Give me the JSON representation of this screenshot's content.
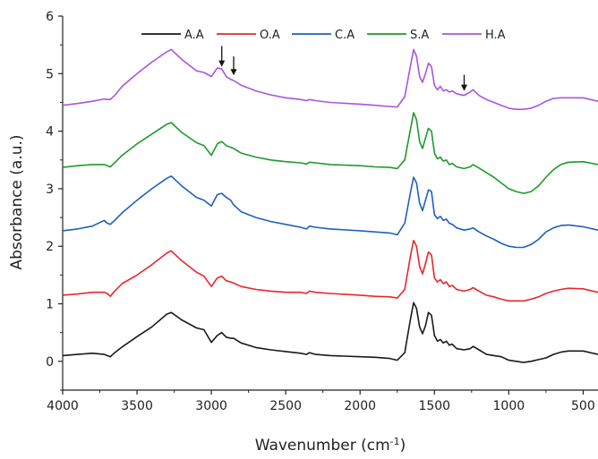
{
  "chart_data": {
    "type": "line",
    "title": "",
    "xlabel": "Wavenumber (cm",
    "xlabel_sup": "-1",
    "xlabel_tail": ")",
    "ylabel": "Absorbance (a.u.)",
    "xlim": [
      4000,
      400
    ],
    "ylim": [
      -0.5,
      6
    ],
    "x_reversed": true,
    "grid": false,
    "legend": "top-center",
    "x_ticks": [
      4000,
      3500,
      3000,
      2500,
      2000,
      1500,
      1000,
      500
    ],
    "y_ticks": [
      0,
      1,
      2,
      3,
      4,
      5,
      6
    ],
    "x_tick_labels": [
      "4000",
      "3500",
      "3000",
      "2500",
      "2000",
      "1500",
      "1000",
      "500"
    ],
    "y_tick_labels": [
      "0",
      "1",
      "2",
      "3",
      "4",
      "5",
      "6"
    ],
    "x": [
      4000,
      3900,
      3800,
      3720,
      3700,
      3680,
      3650,
      3600,
      3500,
      3400,
      3300,
      3270,
      3200,
      3100,
      3050,
      3000,
      2960,
      2930,
      2900,
      2870,
      2850,
      2800,
      2700,
      2600,
      2500,
      2400,
      2360,
      2340,
      2300,
      2200,
      2000,
      1900,
      1800,
      1750,
      1700,
      1660,
      1640,
      1620,
      1600,
      1580,
      1560,
      1540,
      1520,
      1500,
      1480,
      1460,
      1440,
      1420,
      1400,
      1380,
      1350,
      1300,
      1260,
      1240,
      1200,
      1150,
      1100,
      1050,
      1000,
      950,
      900,
      850,
      800,
      750,
      700,
      650,
      600,
      500,
      400
    ],
    "series": [
      {
        "name": "A.A",
        "color": "#1a1a1a",
        "values": [
          0.1,
          0.12,
          0.14,
          0.12,
          0.1,
          0.08,
          0.15,
          0.25,
          0.43,
          0.6,
          0.82,
          0.85,
          0.72,
          0.58,
          0.55,
          0.33,
          0.45,
          0.5,
          0.42,
          0.4,
          0.4,
          0.32,
          0.24,
          0.2,
          0.17,
          0.14,
          0.12,
          0.15,
          0.12,
          0.1,
          0.08,
          0.07,
          0.05,
          0.02,
          0.15,
          0.75,
          1.02,
          0.92,
          0.6,
          0.48,
          0.62,
          0.85,
          0.8,
          0.45,
          0.35,
          0.38,
          0.32,
          0.35,
          0.28,
          0.3,
          0.22,
          0.2,
          0.22,
          0.26,
          0.2,
          0.12,
          0.1,
          0.08,
          0.02,
          0.0,
          -0.02,
          0.0,
          0.03,
          0.06,
          0.12,
          0.16,
          0.18,
          0.18,
          0.12
        ]
      },
      {
        "name": "O.A",
        "color": "#e8262a",
        "values": [
          1.15,
          1.17,
          1.2,
          1.2,
          1.18,
          1.13,
          1.22,
          1.35,
          1.5,
          1.68,
          1.88,
          1.92,
          1.75,
          1.55,
          1.48,
          1.3,
          1.45,
          1.48,
          1.4,
          1.38,
          1.36,
          1.3,
          1.25,
          1.22,
          1.2,
          1.2,
          1.18,
          1.22,
          1.2,
          1.18,
          1.15,
          1.13,
          1.12,
          1.1,
          1.25,
          1.85,
          2.1,
          2.0,
          1.65,
          1.52,
          1.7,
          1.9,
          1.85,
          1.45,
          1.38,
          1.42,
          1.35,
          1.38,
          1.3,
          1.32,
          1.25,
          1.22,
          1.25,
          1.28,
          1.22,
          1.15,
          1.12,
          1.08,
          1.05,
          1.05,
          1.05,
          1.08,
          1.12,
          1.18,
          1.22,
          1.25,
          1.27,
          1.26,
          1.2
        ]
      },
      {
        "name": "C.A",
        "color": "#1f5fbf",
        "values": [
          2.27,
          2.3,
          2.35,
          2.45,
          2.4,
          2.38,
          2.45,
          2.58,
          2.8,
          3.0,
          3.18,
          3.22,
          3.05,
          2.85,
          2.8,
          2.7,
          2.9,
          2.92,
          2.85,
          2.8,
          2.72,
          2.6,
          2.5,
          2.43,
          2.38,
          2.33,
          2.3,
          2.35,
          2.33,
          2.3,
          2.27,
          2.25,
          2.23,
          2.2,
          2.4,
          2.95,
          3.2,
          3.1,
          2.75,
          2.62,
          2.8,
          2.98,
          2.95,
          2.55,
          2.48,
          2.52,
          2.45,
          2.47,
          2.4,
          2.38,
          2.32,
          2.28,
          2.3,
          2.32,
          2.25,
          2.18,
          2.12,
          2.05,
          2.0,
          1.98,
          1.98,
          2.03,
          2.12,
          2.25,
          2.32,
          2.36,
          2.37,
          2.34,
          2.28
        ]
      },
      {
        "name": "S.A",
        "color": "#1e9a2a",
        "values": [
          3.37,
          3.4,
          3.42,
          3.42,
          3.4,
          3.38,
          3.45,
          3.58,
          3.78,
          3.95,
          4.12,
          4.15,
          3.98,
          3.8,
          3.75,
          3.58,
          3.78,
          3.82,
          3.75,
          3.72,
          3.7,
          3.62,
          3.55,
          3.5,
          3.47,
          3.45,
          3.43,
          3.46,
          3.45,
          3.42,
          3.4,
          3.38,
          3.37,
          3.35,
          3.5,
          4.05,
          4.32,
          4.2,
          3.82,
          3.7,
          3.88,
          4.05,
          4.0,
          3.62,
          3.52,
          3.55,
          3.48,
          3.5,
          3.42,
          3.44,
          3.38,
          3.35,
          3.38,
          3.42,
          3.36,
          3.28,
          3.2,
          3.1,
          3.0,
          2.95,
          2.92,
          2.95,
          3.05,
          3.2,
          3.33,
          3.42,
          3.46,
          3.47,
          3.42
        ]
      },
      {
        "name": "H.A",
        "color": "#a855e0",
        "values": [
          4.45,
          4.48,
          4.52,
          4.56,
          4.55,
          4.55,
          4.62,
          4.78,
          5.0,
          5.2,
          5.38,
          5.42,
          5.25,
          5.05,
          5.02,
          4.95,
          5.1,
          5.08,
          4.95,
          4.9,
          4.88,
          4.8,
          4.7,
          4.63,
          4.58,
          4.55,
          4.53,
          4.55,
          4.53,
          4.5,
          4.47,
          4.45,
          4.43,
          4.42,
          4.6,
          5.15,
          5.42,
          5.3,
          4.95,
          4.85,
          5.0,
          5.18,
          5.12,
          4.8,
          4.72,
          4.78,
          4.7,
          4.72,
          4.68,
          4.7,
          4.65,
          4.62,
          4.68,
          4.72,
          4.62,
          4.55,
          4.5,
          4.45,
          4.4,
          4.38,
          4.38,
          4.4,
          4.45,
          4.52,
          4.57,
          4.58,
          4.58,
          4.58,
          4.52
        ]
      }
    ],
    "annotations": [
      {
        "type": "arrow",
        "x": 2930,
        "y_top": 5.48,
        "y_tip": 5.12
      },
      {
        "type": "arrow",
        "x": 2850,
        "y_top": 5.3,
        "y_tip": 4.97
      },
      {
        "type": "arrow",
        "x": 1300,
        "y_top": 4.98,
        "y_tip": 4.7
      }
    ]
  }
}
